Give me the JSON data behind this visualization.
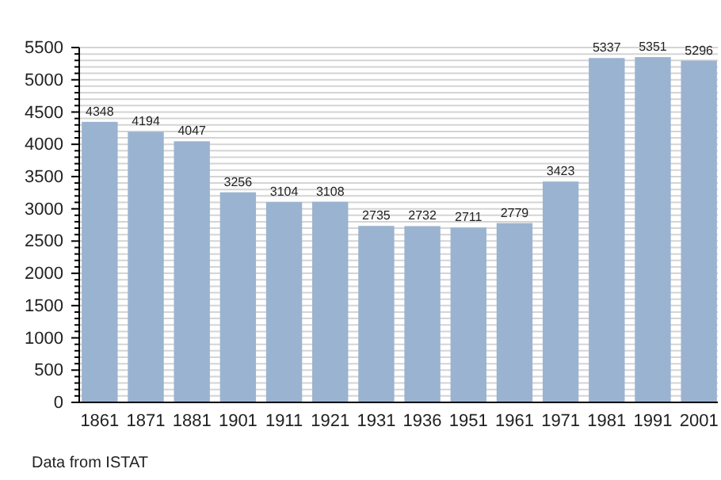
{
  "chart_data": {
    "type": "bar",
    "categories": [
      "1861",
      "1871",
      "1881",
      "1901",
      "1911",
      "1921",
      "1931",
      "1936",
      "1951",
      "1961",
      "1971",
      "1981",
      "1991",
      "2001"
    ],
    "values": [
      4348,
      4194,
      4047,
      3256,
      3104,
      3108,
      2735,
      2732,
      2711,
      2779,
      3423,
      5337,
      5351,
      5296
    ],
    "color": "#9ab3d0",
    "data_labels": true,
    "grid": "y",
    "ylim": [
      0,
      5500
    ],
    "yticks": [
      0,
      {
        "value": 100,
        "label": null
      },
      {
        "value": 200,
        "label": null
      },
      {
        "value": 300,
        "label": null
      },
      {
        "value": 400,
        "label": null
      },
      500,
      {
        "value": 600,
        "label": null
      },
      {
        "value": 700,
        "label": null
      },
      {
        "value": 800,
        "label": null
      },
      {
        "value": 900,
        "label": null
      },
      1000,
      {
        "value": 1100,
        "label": null
      },
      {
        "value": 1200,
        "label": null
      },
      {
        "value": 1300,
        "label": null
      },
      {
        "value": 1400,
        "label": null
      },
      1500,
      {
        "value": 1600,
        "label": null
      },
      {
        "value": 1700,
        "label": null
      },
      {
        "value": 1800,
        "label": null
      },
      {
        "value": 1900,
        "label": null
      },
      2000,
      {
        "value": 2100,
        "label": null
      },
      {
        "value": 2200,
        "label": null
      },
      {
        "value": 2300,
        "label": null
      },
      {
        "value": 2400,
        "label": null
      },
      2500,
      {
        "value": 2600,
        "label": null
      },
      {
        "value": 2700,
        "label": null
      },
      {
        "value": 2800,
        "label": null
      },
      {
        "value": 2900,
        "label": null
      },
      3000,
      {
        "value": 3100,
        "label": null
      },
      {
        "value": 3200,
        "label": null
      },
      {
        "value": 3300,
        "label": null
      },
      {
        "value": 3400,
        "label": null
      },
      3500,
      {
        "value": 3600,
        "label": null
      },
      {
        "value": 3700,
        "label": null
      },
      {
        "value": 3800,
        "label": null
      },
      {
        "value": 3900,
        "label": null
      },
      4000,
      {
        "value": 4100,
        "label": null
      },
      {
        "value": 4200,
        "label": null
      },
      {
        "value": 4300,
        "label": null
      },
      {
        "value": 4400,
        "label": null
      },
      4500,
      {
        "value": 4600,
        "label": null
      },
      {
        "value": 4700,
        "label": null
      },
      {
        "value": 4800,
        "label": null
      },
      {
        "value": 4900,
        "label": null
      },
      5000,
      {
        "value": 5100,
        "label": null
      },
      {
        "value": 5200,
        "label": null
      },
      {
        "value": 5300,
        "label": null
      },
      {
        "value": 5400,
        "label": null
      },
      5500
    ],
    "annotations": [
      "Data from ISTAT"
    ]
  }
}
